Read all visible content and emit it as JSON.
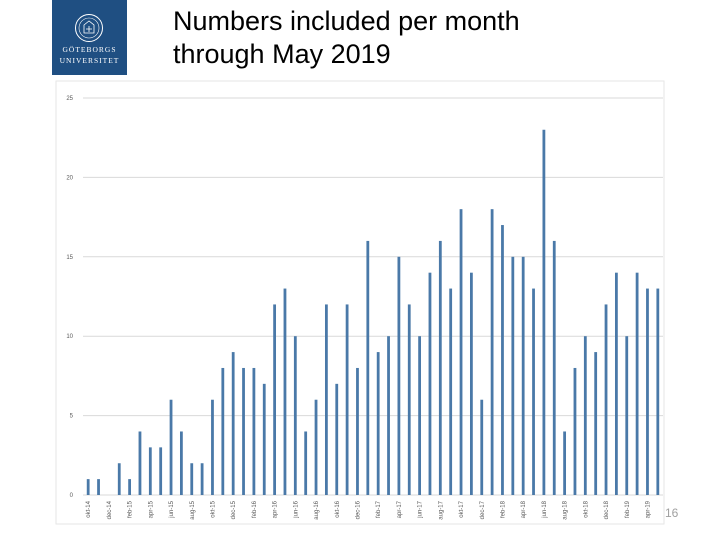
{
  "title": {
    "line1": "Numbers included per month",
    "line2": "through May 2019"
  },
  "logo": {
    "line1": "GÖTEBORGS",
    "line2": "UNIVERSITET"
  },
  "page_number": "16",
  "colors": {
    "bar": "#4a79a8",
    "logo_bg": "#1f4f82",
    "grid": "#d9d9d9"
  },
  "chart_data": {
    "type": "bar",
    "title": "Numbers included per month through May 2019",
    "xlabel": "",
    "ylabel": "",
    "ylim": [
      0,
      25
    ],
    "yticks": [
      0,
      5,
      10,
      15,
      20,
      25
    ],
    "grid": true,
    "legend": "none",
    "categories": [
      "okt-14",
      "nov-14",
      "dec-14",
      "jan-15",
      "feb-15",
      "mar-15",
      "apr-15",
      "maj-15",
      "jun-15",
      "jul-15",
      "aug-15",
      "sep-15",
      "okt-15",
      "nov-15",
      "dec-15",
      "jan-16",
      "feb-16",
      "mar-16",
      "apr-16",
      "maj-16",
      "jun-16",
      "jul-16",
      "aug-16",
      "sep-16",
      "okt-16",
      "nov-16",
      "dec-16",
      "jan-17",
      "feb-17",
      "mar-17",
      "apr-17",
      "maj-17",
      "jun-17",
      "jul-17",
      "aug-17",
      "sep-17",
      "okt-17",
      "nov-17",
      "dec-17",
      "jan-18",
      "feb-18",
      "mar-18",
      "apr-18",
      "maj-18",
      "jun-18",
      "jul-18",
      "aug-18",
      "sep-18",
      "okt-18",
      "nov-18",
      "dec-18",
      "jan-19",
      "feb-19",
      "mar-19",
      "apr-19",
      "maj-19"
    ],
    "tick_labels": [
      "okt-14",
      "dec-14",
      "feb-15",
      "apr-15",
      "jun-15",
      "aug-15",
      "okt-15",
      "dec-15",
      "feb-16",
      "apr-16",
      "jun-16",
      "aug-16",
      "okt-16",
      "dec-16",
      "feb-17",
      "apr-17",
      "jun-17",
      "aug-17",
      "okt-17",
      "dec-17",
      "feb-18",
      "apr-18",
      "jun-18",
      "aug-18",
      "okt-18",
      "dec-18",
      "feb-19",
      "apr-19",
      "jun-19"
    ],
    "values": [
      1,
      1,
      0,
      2,
      1,
      4,
      3,
      3,
      6,
      4,
      2,
      2,
      6,
      8,
      9,
      8,
      8,
      7,
      12,
      13,
      10,
      4,
      6,
      12,
      7,
      12,
      8,
      16,
      9,
      10,
      15,
      12,
      10,
      14,
      16,
      13,
      18,
      14,
      6,
      18,
      17,
      15,
      15,
      13,
      23,
      16,
      4,
      8,
      10,
      9,
      12,
      14,
      10,
      14,
      13,
      13
    ]
  }
}
